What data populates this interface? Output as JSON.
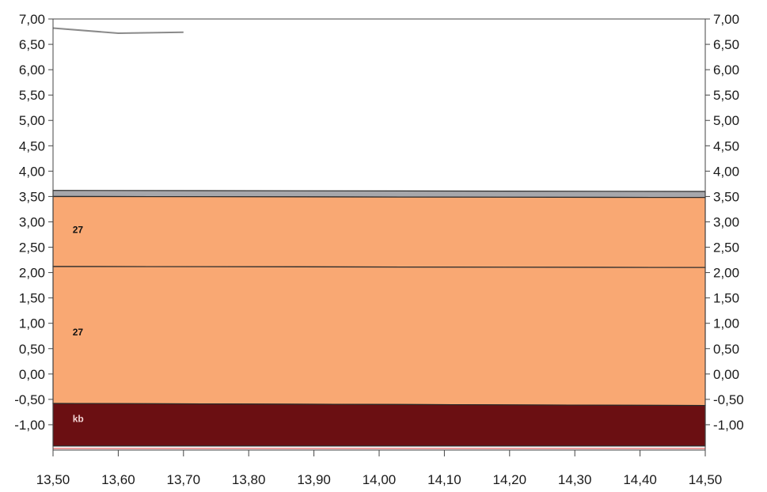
{
  "chart_data": {
    "type": "area",
    "title": "",
    "xlabel": "",
    "ylabel": "",
    "xlim": [
      13.5,
      14.5
    ],
    "ylim": [
      -1.5,
      7.0
    ],
    "x_ticks": [
      13.5,
      13.6,
      13.7,
      13.8,
      13.9,
      14.0,
      14.1,
      14.2,
      14.3,
      14.4,
      14.5
    ],
    "x_tick_labels": [
      "13,50",
      "13,60",
      "13,70",
      "13,80",
      "13,90",
      "14,00",
      "14,10",
      "14,20",
      "14,30",
      "14,40",
      "14,50"
    ],
    "y_ticks": [
      7.0,
      6.5,
      6.0,
      5.5,
      5.0,
      4.5,
      4.0,
      3.5,
      3.0,
      2.5,
      2.0,
      1.5,
      1.0,
      0.5,
      0.0,
      -0.5,
      -1.0
    ],
    "y_tick_labels": [
      "7,00",
      "6,50",
      "6,00",
      "5,50",
      "5,00",
      "4,50",
      "4,00",
      "3,50",
      "3,00",
      "2,50",
      "2,00",
      "1,50",
      "1,00",
      "0,50",
      "0,00",
      "-0,50",
      "-1,00"
    ],
    "y_axes": [
      "left",
      "right"
    ],
    "grid": false,
    "layers": [
      {
        "label": "",
        "top": [
          [
            13.5,
            3.62
          ],
          [
            14.5,
            3.6
          ]
        ],
        "bottom": [
          [
            13.5,
            3.5
          ],
          [
            14.5,
            3.48
          ]
        ],
        "color": "#a7a7ab",
        "label_color": "#000000"
      },
      {
        "label": "27",
        "top": [
          [
            13.5,
            3.5
          ],
          [
            14.5,
            3.48
          ]
        ],
        "bottom": [
          [
            13.5,
            2.12
          ],
          [
            14.5,
            2.1
          ]
        ],
        "color": "#f9a873",
        "label_color": "#111111",
        "label_pos": [
          13.53,
          2.78
        ]
      },
      {
        "label": "27",
        "top": [
          [
            13.5,
            2.12
          ],
          [
            14.5,
            2.1
          ]
        ],
        "bottom": [
          [
            13.5,
            -0.58
          ],
          [
            14.5,
            -0.62
          ]
        ],
        "color": "#f9a873",
        "label_color": "#111111",
        "label_pos": [
          13.53,
          0.76
        ]
      },
      {
        "label": "kb",
        "top": [
          [
            13.5,
            -0.58
          ],
          [
            14.5,
            -0.62
          ]
        ],
        "bottom": [
          [
            13.5,
            -1.42
          ],
          [
            14.5,
            -1.42
          ]
        ],
        "color": "#6b0f12",
        "label_color": "#f2d4d4",
        "label_pos": [
          13.53,
          -0.95
        ]
      }
    ],
    "series": [
      {
        "x": [
          13.5,
          13.6,
          13.7
        ],
        "y": [
          6.82,
          6.72,
          6.74
        ],
        "color": "#8a8a8a"
      }
    ]
  }
}
